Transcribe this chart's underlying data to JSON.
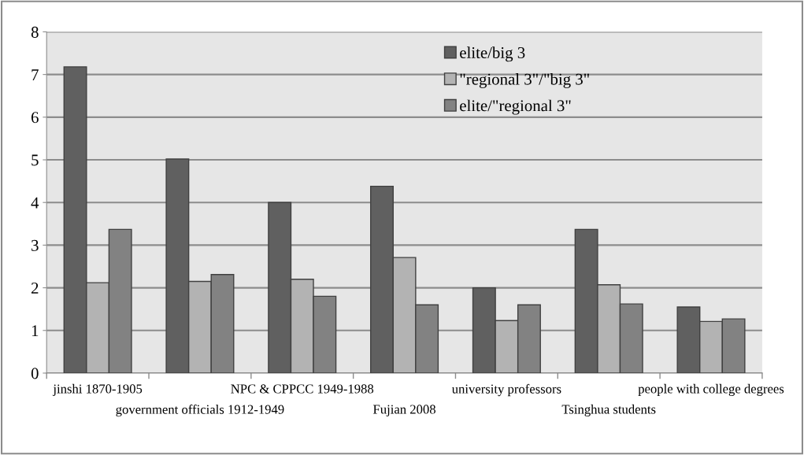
{
  "chart_data": {
    "type": "bar",
    "categories": [
      "jinshi 1870-1905",
      "government officials 1912-1949",
      "NPC & CPPCC 1949-1988",
      "Fujian 2008",
      "university professors",
      "Tsinghua students",
      "people with college degrees"
    ],
    "series": [
      {
        "name": "elite/big 3",
        "color": "#606060",
        "values": [
          7.18,
          5.02,
          4.0,
          4.38,
          2.0,
          3.37,
          1.55
        ]
      },
      {
        "name": "\"regional 3\"/\"big 3\"",
        "color": "#b3b3b3",
        "values": [
          2.12,
          2.15,
          2.2,
          2.71,
          1.23,
          2.07,
          1.21
        ]
      },
      {
        "name": "elite/\"regional 3\"",
        "color": "#828282",
        "values": [
          3.37,
          2.31,
          1.8,
          1.6,
          1.6,
          1.62,
          1.27
        ]
      }
    ],
    "ylim": [
      0,
      8
    ],
    "yticks": [
      0,
      1,
      2,
      3,
      4,
      5,
      6,
      7,
      8
    ],
    "grid": "y",
    "legend": "top right"
  }
}
